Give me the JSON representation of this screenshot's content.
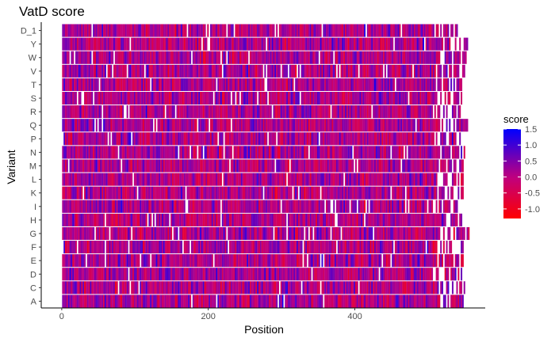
{
  "chart_data": {
    "type": "heatmap",
    "title": "VatD score",
    "xlabel": "Position",
    "ylabel": "Variant",
    "x_ticks": [
      0,
      200,
      400
    ],
    "xlim": [
      -28,
      578
    ],
    "y_categories": [
      "A",
      "C",
      "D",
      "E",
      "F",
      "G",
      "H",
      "I",
      "K",
      "L",
      "M",
      "N",
      "P",
      "Q",
      "R",
      "S",
      "T",
      "V",
      "W",
      "Y",
      "D_1"
    ],
    "position_range": [
      1,
      556
    ],
    "grid": false,
    "legend": {
      "title": "score",
      "placement": "right",
      "min": -1.3,
      "max": 1.5,
      "ticks": [
        "1.5",
        "1.0",
        "0.5",
        "0.0",
        "-0.5",
        "-1.0"
      ],
      "tick_values": [
        1.5,
        1.0,
        0.5,
        0.0,
        -0.5,
        -1.0
      ],
      "colors": {
        "low": "#ff0000",
        "mid": "#bf0080",
        "high": "#0000ff"
      }
    },
    "row_end_positions": {
      "A": 550,
      "C": 552,
      "D": 546,
      "E": 550,
      "F": 548,
      "G": 556,
      "H": 548,
      "I": 541,
      "K": 548,
      "L": 550,
      "M": 548,
      "N": 550,
      "P": 548,
      "Q": 553,
      "R": 545,
      "S": 550,
      "T": 546,
      "V": 550,
      "W": 556,
      "Y": 553,
      "D_1": 540
    }
  }
}
